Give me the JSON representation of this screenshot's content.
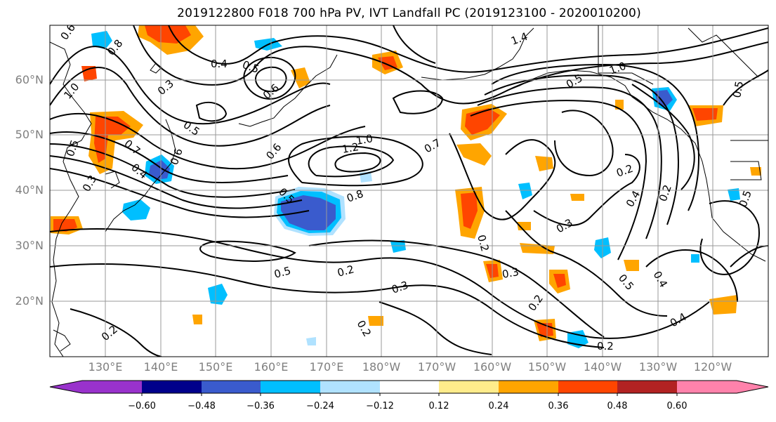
{
  "title": "2019122800 F018 700 hPa PV, IVT Landfall PC (2019123100 - 2020010200)",
  "latitude_labels": [
    "60°N",
    "50°N",
    "40°N",
    "30°N",
    "20°N"
  ],
  "longitude_labels": [
    "130°E",
    "140°E",
    "150°E",
    "160°E",
    "170°E",
    "180°W",
    "170°W",
    "160°W",
    "150°W",
    "140°W",
    "130°W",
    "120°W"
  ],
  "contour_labels": [
    "0.6",
    "0.8",
    "1.0",
    "0.5",
    "0.7",
    "0.4",
    "0.3",
    "0.5",
    "0.6",
    "0.4",
    "0.5",
    "0.3",
    "1.4",
    "1.0",
    "0.5",
    "1.0",
    "1.2",
    "0.6",
    "0.7",
    "0.5",
    "0.8",
    "0.6",
    "0.4",
    "0.2",
    "0.2",
    "0.3",
    "0.5",
    "0.2",
    "0.3",
    "0.3",
    "0.2",
    "0.2",
    "0.2",
    "0.5",
    "0.4",
    "0.2",
    "0.4",
    "0.5",
    "0.5",
    "0.2"
  ],
  "colorbar": {
    "ticks": [
      "−0.60",
      "−0.48",
      "−0.36",
      "−0.24",
      "−0.12",
      "0.12",
      "0.24",
      "0.36",
      "0.48",
      "0.60"
    ],
    "colors": [
      "#9932cc",
      "#00008b",
      "#3a5bcd",
      "#00bfff",
      "#b0e2ff",
      "#ffffff",
      "#ffec8b",
      "#ffa500",
      "#ff4500",
      "#b22222",
      "#ff82ab"
    ]
  }
}
